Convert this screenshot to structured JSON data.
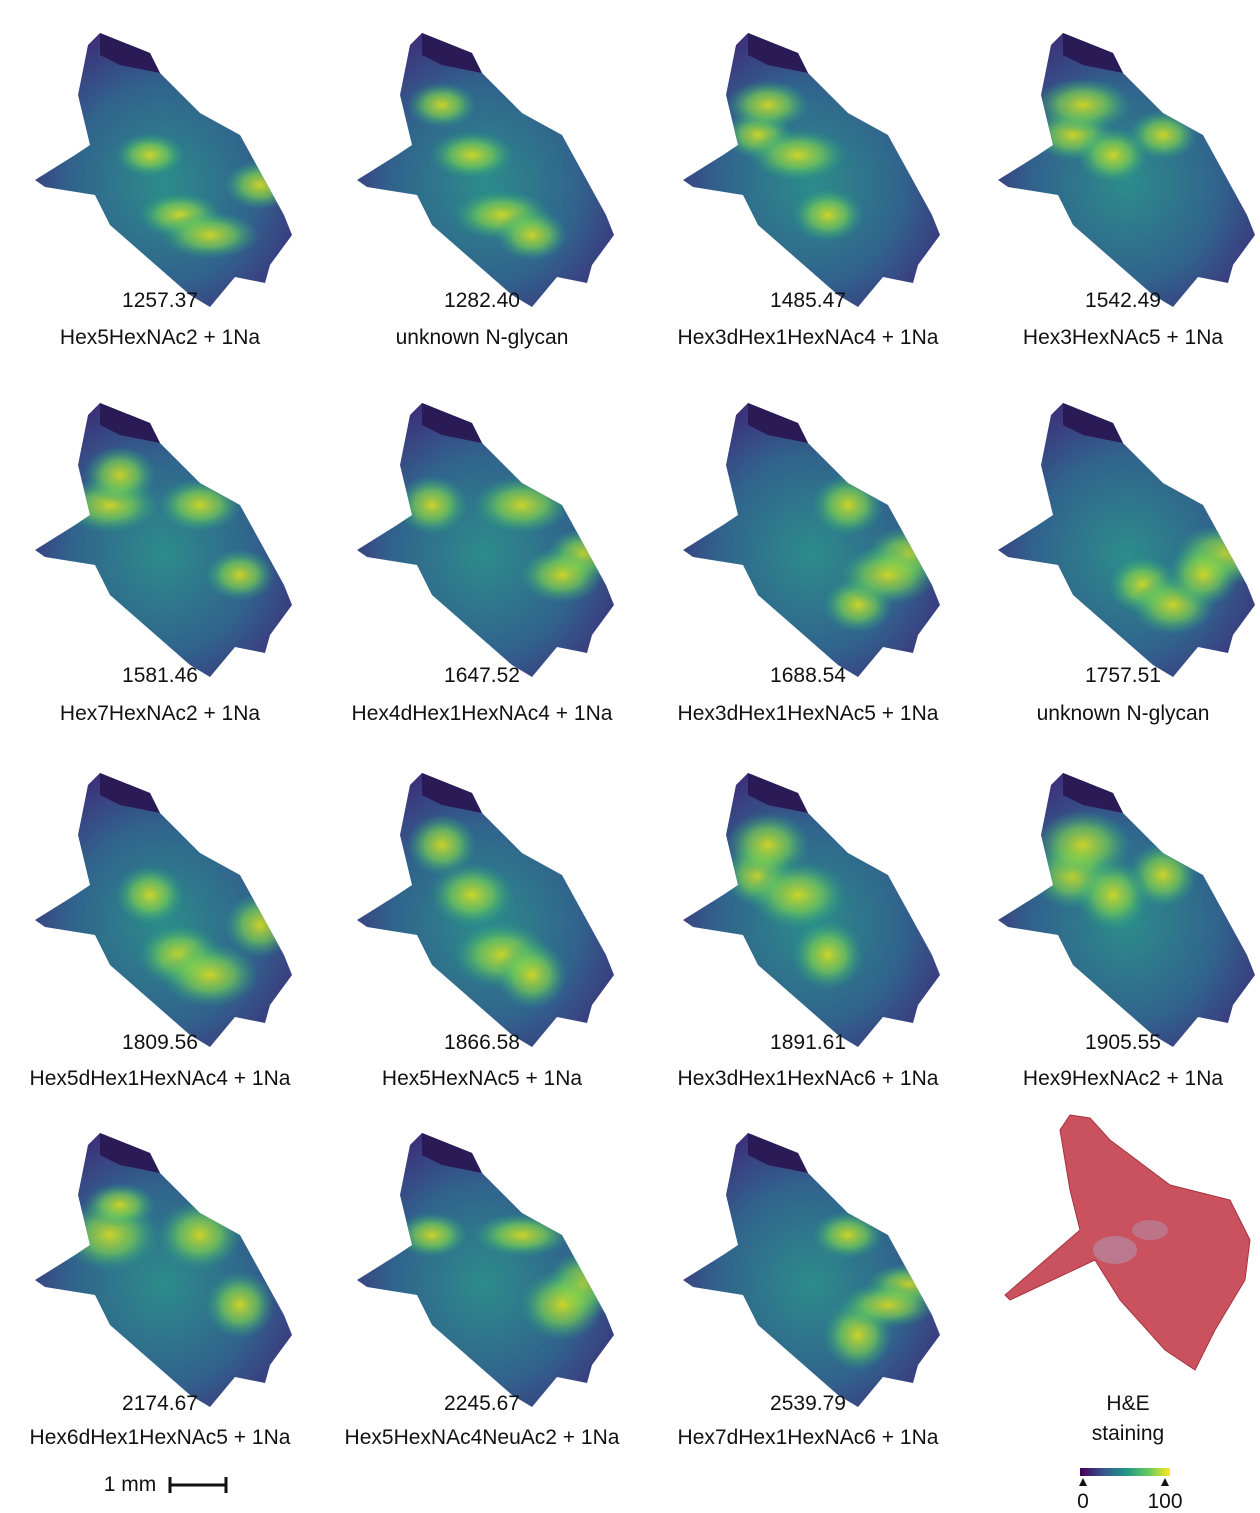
{
  "panels": [
    {
      "mz": "1257.37",
      "label": "Hex5HexNAc2 + 1Na"
    },
    {
      "mz": "1282.40",
      "label": "unknown N-glycan"
    },
    {
      "mz": "1485.47",
      "label": "Hex3dHex1HexNAc4 + 1Na"
    },
    {
      "mz": "1542.49",
      "label": "Hex3HexNAc5 + 1Na"
    },
    {
      "mz": "1581.46",
      "label": "Hex7HexNAc2 + 1Na"
    },
    {
      "mz": "1647.52",
      "label": "Hex4dHex1HexNAc4 + 1Na"
    },
    {
      "mz": "1688.54",
      "label": "Hex3dHex1HexNAc5 + 1Na"
    },
    {
      "mz": "1757.51",
      "label": "unknown N-glycan"
    },
    {
      "mz": "1809.56",
      "label": "Hex5dHex1HexNAc4 + 1Na"
    },
    {
      "mz": "1866.58",
      "label": "Hex5HexNAc5 + 1Na"
    },
    {
      "mz": "1891.61",
      "label": "Hex3dHex1HexNAc6 + 1Na"
    },
    {
      "mz": "1905.55",
      "label": "Hex9HexNAc2 + 1Na"
    },
    {
      "mz": "2174.67",
      "label": "Hex6dHex1HexNAc5 + 1Na"
    },
    {
      "mz": "2245.67",
      "label": "Hex5HexNAc4NeuAc2 + 1Na"
    },
    {
      "mz": "2539.79",
      "label": "Hex7dHex1HexNAc6 + 1Na"
    }
  ],
  "he_caption": [
    "H&E",
    "staining"
  ],
  "scale_bar": "1 mm",
  "colorbar": {
    "ticks": [
      "0",
      "100"
    ]
  }
}
